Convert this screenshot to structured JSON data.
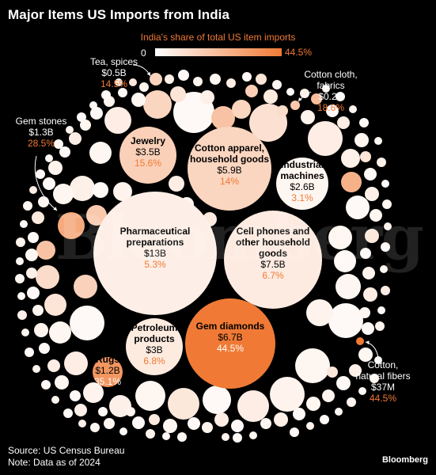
{
  "title": "Major Items US Imports from India",
  "legend": {
    "title": "India's share of total US item imports",
    "min_label": "0",
    "max_label": "44.5%",
    "color_low": "#ffffff",
    "color_high": "#f07a35"
  },
  "footer": {
    "source": "Source: US Census Bureau",
    "note": "Note: Data as of 2024"
  },
  "brand": "Bloomberg",
  "watermark": "Bloomberg",
  "chart_data": {
    "type": "bubble",
    "title": "Major Items US Imports from India",
    "size_measure": "US imports from India (USD)",
    "color_measure": "India's share of total US item imports (%)",
    "color_range": [
      0,
      44.5
    ],
    "labeled_items": [
      {
        "name": "Pharmaceutical preparations",
        "value": "$13B",
        "value_usd_b": 13,
        "share_label": "5.3%",
        "share": 5.3
      },
      {
        "name": "Cell phones and other household goods",
        "value": "$7.5B",
        "value_usd_b": 7.5,
        "share_label": "6.7%",
        "share": 6.7
      },
      {
        "name": "Gem diamonds",
        "value": "$6.7B",
        "value_usd_b": 6.7,
        "share_label": "44.5%",
        "share": 44.5
      },
      {
        "name": "Cotton apparel, household goods",
        "value": "$5.9B",
        "value_usd_b": 5.9,
        "share_label": "14%",
        "share": 14
      },
      {
        "name": "Jewelry",
        "value": "$3.5B",
        "value_usd_b": 3.5,
        "share_label": "15.6%",
        "share": 15.6
      },
      {
        "name": "Petroleum products",
        "value": "$3B",
        "value_usd_b": 3,
        "share_label": "6.8%",
        "share": 6.8
      },
      {
        "name": "Industrial machines",
        "value": "$2.6B",
        "value_usd_b": 2.6,
        "share_label": "3.1%",
        "share": 3.1
      },
      {
        "name": "Gem stones",
        "value": "$1.3B",
        "value_usd_b": 1.3,
        "share_label": "28.5%",
        "share": 28.5
      },
      {
        "name": "Rugs",
        "value": "$1.2B",
        "value_usd_b": 1.2,
        "share_label": "35.1%",
        "share": 35.1
      },
      {
        "name": "Tea, spices",
        "value": "$0.5B",
        "value_usd_b": 0.5,
        "share_label": "14.5%",
        "share": 14.5
      },
      {
        "name": "Cotton cloth, fabrics",
        "value": "$0.2B",
        "value_usd_b": 0.2,
        "share_label": "18.6%",
        "share": 18.6
      },
      {
        "name": "Cotton, natural fibers",
        "value": "$37M",
        "value_usd_b": 0.037,
        "share_label": "44.5%",
        "share": 44.5
      }
    ]
  }
}
